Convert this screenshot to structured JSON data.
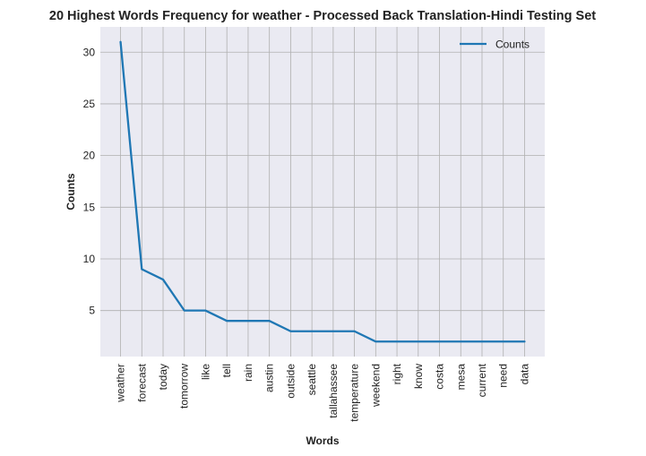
{
  "chart_data": {
    "type": "line",
    "title": "20 Highest Words Frequency for weather - Processed Back Translation-Hindi Testing Set",
    "xlabel": "Words",
    "ylabel": "Counts",
    "categories": [
      "weather",
      "forecast",
      "today",
      "tomorrow",
      "like",
      "tell",
      "rain",
      "austin",
      "outside",
      "seattle",
      "tallahassee",
      "temperature",
      "weekend",
      "right",
      "know",
      "costa",
      "mesa",
      "current",
      "need",
      "data"
    ],
    "series": [
      {
        "name": "Counts",
        "values": [
          31,
          9,
          8,
          5,
          5,
          4,
          4,
          4,
          3,
          3,
          3,
          3,
          2,
          2,
          2,
          2,
          2,
          2,
          2,
          2
        ]
      }
    ],
    "ylim": [
      0.55,
      32.45
    ],
    "yticks": [
      5,
      10,
      15,
      20,
      25,
      30
    ],
    "grid": true,
    "legend_position": "upper right",
    "colors": {
      "line": "#1f77b4",
      "plot_background": "#eaeaf2",
      "grid": "#b0b0b0"
    }
  }
}
